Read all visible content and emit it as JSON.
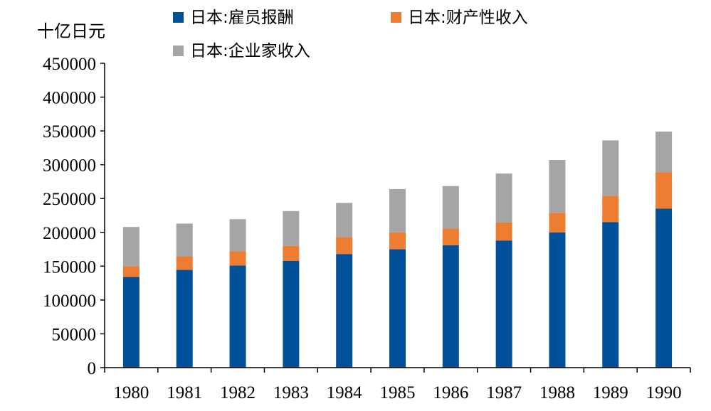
{
  "chart_data": {
    "type": "bar",
    "stacked": true,
    "title": "",
    "xlabel": "",
    "ylabel": "十亿日元",
    "ylim": [
      0,
      450000
    ],
    "yticks": [
      0,
      50000,
      100000,
      150000,
      200000,
      250000,
      300000,
      350000,
      400000,
      450000
    ],
    "ytick_labels": [
      "0",
      "50000",
      "100000",
      "150000",
      "200000",
      "250000",
      "300000",
      "350000",
      "400000",
      "450000"
    ],
    "categories": [
      "1980",
      "1981",
      "1982",
      "1983",
      "1984",
      "1985",
      "1986",
      "1987",
      "1988",
      "1989",
      "1990"
    ],
    "grid": false,
    "legend_position": "top",
    "series": [
      {
        "name": "日本:雇员报酬",
        "color": "#00509a",
        "values": [
          134000,
          144500,
          151000,
          158000,
          168000,
          175000,
          181000,
          188000,
          200000,
          215000,
          235000
        ]
      },
      {
        "name": "日本:财产性收入",
        "color": "#ed7d31",
        "values": [
          16000,
          20000,
          21000,
          22000,
          25000,
          25000,
          24500,
          26500,
          29000,
          39000,
          54000
        ]
      },
      {
        "name": "日本:企业家收入",
        "color": "#a5a5a5",
        "values": [
          58000,
          48500,
          47500,
          51500,
          50500,
          64000,
          63000,
          72500,
          78000,
          82000,
          60000
        ]
      }
    ]
  }
}
